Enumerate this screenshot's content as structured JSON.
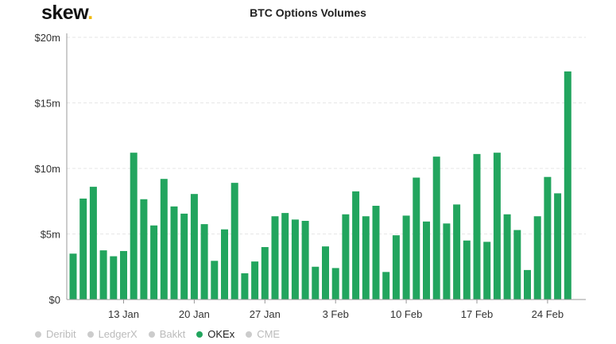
{
  "logo": {
    "text": "skew",
    "dot": "."
  },
  "chart_data": {
    "type": "bar",
    "title": "BTC Options Volumes",
    "xlabel": "",
    "ylabel": "",
    "ylim": [
      0,
      20
    ],
    "y_ticks": [
      "$0",
      "$5m",
      "$10m",
      "$15m",
      "$20m"
    ],
    "y_tick_values": [
      0,
      5,
      10,
      15,
      20
    ],
    "x_ticks": [
      "13 Jan",
      "20 Jan",
      "27 Jan",
      "3 Feb",
      "10 Feb",
      "17 Feb",
      "24 Feb"
    ],
    "x_tick_index": [
      5,
      12,
      19,
      26,
      33,
      40,
      47
    ],
    "grid": true,
    "color": "#22a55e",
    "categories_range": "8 Jan – 26 Feb",
    "unit": "USD millions",
    "values": [
      3.5,
      7.7,
      8.6,
      3.75,
      3.3,
      3.7,
      11.2,
      7.65,
      5.65,
      9.2,
      7.1,
      6.55,
      8.05,
      5.75,
      2.95,
      5.35,
      8.9,
      2.0,
      2.9,
      4.0,
      6.35,
      6.6,
      6.1,
      6.0,
      2.5,
      4.05,
      2.4,
      6.5,
      8.25,
      6.35,
      7.15,
      2.1,
      4.9,
      6.4,
      9.3,
      5.95,
      10.9,
      5.8,
      7.25,
      4.5,
      11.1,
      4.4,
      11.2,
      6.5,
      5.3,
      2.25,
      6.35,
      9.35,
      8.1,
      17.4
    ],
    "legend": [
      {
        "name": "Deribit",
        "active": false
      },
      {
        "name": "LedgerX",
        "active": false
      },
      {
        "name": "Bakkt",
        "active": false
      },
      {
        "name": "OKEx",
        "active": true,
        "color": "#22a55e"
      },
      {
        "name": "CME",
        "active": false
      }
    ],
    "legend_position": "bottom-left"
  }
}
